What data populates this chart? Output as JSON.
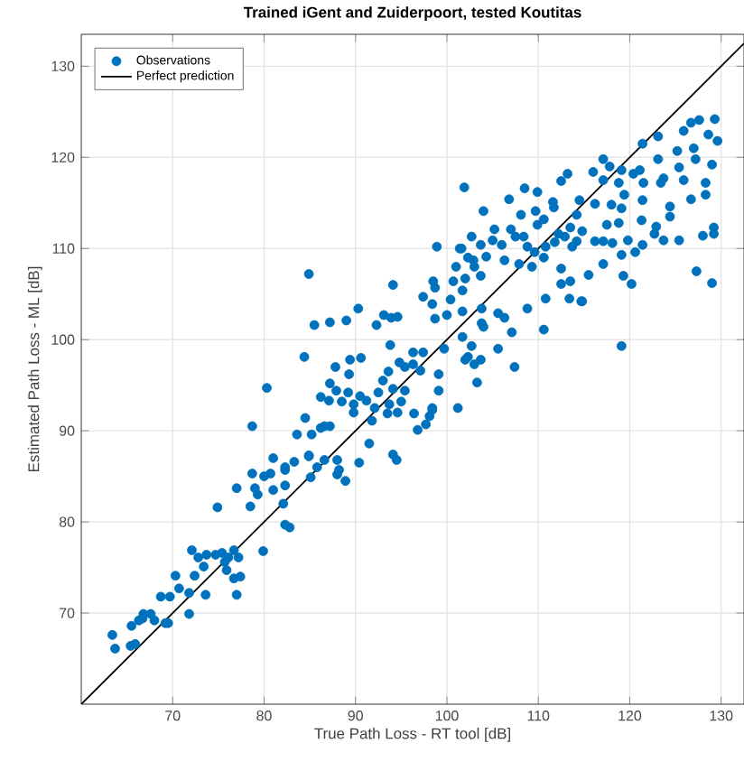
{
  "chart_data": {
    "type": "scatter",
    "title": "Trained iGent and Zuiderpoort, tested Koutitas",
    "xlabel": "True Path Loss - RT tool [dB]",
    "ylabel": "Estimated Path Loss - ML [dB]",
    "xlim": [
      60,
      132.5
    ],
    "ylim": [
      60,
      133.5
    ],
    "xticks": [
      70,
      80,
      90,
      100,
      110,
      120,
      130
    ],
    "yticks": [
      70,
      80,
      90,
      100,
      110,
      120,
      130
    ],
    "grid": true,
    "legend": "top left",
    "series": [
      {
        "name": "Observations",
        "marker": "circle",
        "color": "#0072bd",
        "x": [
          78.7,
          84.5,
          83.6,
          85.2,
          86.2,
          81.0,
          82.3,
          83.3,
          84.9,
          78.7,
          80.0,
          80.7,
          82.3,
          77.0,
          79.0,
          79.3,
          81.0,
          82.3,
          85.1,
          74.9,
          78.5,
          82.3,
          82.8,
          79.9,
          72.1,
          72.8,
          73.7,
          74.7,
          75.4,
          76.1,
          76.7,
          77.2,
          75.9,
          76.7,
          77.4,
          75.7,
          73.4,
          72.4,
          70.3,
          70.7,
          71.8,
          73.6,
          68.7,
          69.7,
          71.8,
          66.8,
          67.6,
          68.0,
          66.3,
          65.5,
          69.2,
          69.5,
          63.4,
          63.7,
          65.4,
          65.9,
          66.7,
          77.0,
          82.1,
          98.9,
          101.6,
          102.3,
          103.0,
          103.7,
          102.0,
          100.7,
          98.5,
          98.7,
          94.1,
          84.9,
          101.7,
          97.4,
          100.4,
          98.4,
          100.0,
          98.7,
          101.7,
          103.8,
          90.3,
          93.1,
          93.9,
          94.6,
          92.3,
          89.0,
          87.2,
          85.5,
          93.8,
          96.3,
          97.4,
          99.7,
          101.7,
          102.3,
          103.7,
          103.8,
          84.4,
          89.4,
          90.6,
          87.8,
          94.8,
          95.4,
          96.3,
          97.1,
          99.1,
          89.3,
          93.6,
          93.0,
          103.3,
          87.2,
          80.3,
          87.9,
          89.2,
          90.5,
          92.5,
          94.1,
          95.4,
          99.1,
          86.2,
          87.1,
          88.5,
          89.8,
          91.2,
          92.1,
          93.7,
          95.0,
          94.6,
          93.5,
          96.4,
          98.4,
          98.1,
          97.7,
          101.2,
          89.8,
          87.2,
          86.6,
          91.8,
          96.8,
          91.5,
          84.9,
          86.6,
          88.0,
          90.4,
          94.1,
          94.5,
          85.8,
          88.2,
          88.9,
          88.0,
          129.3,
          127.6,
          126.7,
          125.9,
          128.6,
          129.6,
          127.0,
          125.2,
          123.1,
          121.4,
          127.2,
          129.0,
          123.1,
          121.1,
          120.4,
          119.1,
          117.1,
          117.8,
          116.0,
          113.2,
          125.4,
          123.7,
          123.4,
          128.3,
          125.9,
          121.5,
          118.8,
          117.1,
          112.5,
          101.9,
          108.5,
          109.9,
          106.8,
          111.6,
          114.5,
          116.2,
          118.0,
          119.4,
          121.4,
          124.4,
          126.7,
          128.3,
          104.0,
          108.1,
          109.7,
          111.7,
          114.2,
          119.1,
          121.3,
          122.9,
          124.4,
          105.2,
          107.0,
          108.4,
          109.9,
          110.6,
          112.2,
          113.5,
          114.8,
          117.5,
          118.8,
          102.7,
          103.7,
          105.0,
          106.0,
          107.5,
          108.8,
          110.8,
          111.8,
          112.9,
          114.2,
          116.2,
          117.1,
          118.1,
          119.8,
          121.4,
          122.7,
          123.7,
          125.4,
          128.0,
          129.2,
          129.2,
          101.4,
          109.6,
          110.6,
          113.7,
          117.1,
          119.1,
          120.6,
          112.5,
          109.3,
          107.9,
          106.3,
          104.3,
          102.9,
          101.0,
          127.3,
          129.0,
          113.5,
          115.5,
          119.3,
          120.2,
          112.5,
          110.8,
          113.4,
          114.8,
          108.8,
          105.6,
          106.3,
          114.7,
          110.6,
          119.1,
          107.1,
          105.6,
          107.4,
          104.0,
          98.4,
          102.7,
          102.0,
          103.0
        ],
        "values": [
          90.5,
          91.4,
          89.6,
          89.6,
          90.3,
          87.0,
          86.0,
          86.6,
          87.3,
          85.3,
          85.0,
          85.3,
          85.7,
          83.7,
          83.7,
          83.0,
          83.5,
          84.0,
          84.9,
          81.6,
          81.7,
          79.7,
          79.4,
          76.8,
          76.9,
          76.1,
          76.4,
          76.4,
          76.6,
          76.1,
          76.9,
          76.1,
          74.7,
          73.8,
          74.0,
          75.6,
          75.1,
          74.1,
          74.1,
          72.7,
          72.2,
          72.0,
          71.8,
          71.8,
          69.9,
          69.9,
          69.9,
          69.2,
          69.2,
          68.6,
          68.9,
          68.9,
          67.6,
          66.1,
          66.4,
          66.6,
          69.4,
          72.0,
          82.0,
          110.2,
          110.0,
          109.0,
          108.0,
          107.0,
          106.7,
          106.4,
          106.4,
          105.7,
          106.0,
          107.2,
          105.4,
          104.7,
          104.4,
          103.9,
          102.7,
          102.3,
          103.1,
          103.4,
          103.4,
          102.7,
          102.4,
          102.5,
          101.6,
          102.1,
          101.9,
          101.6,
          99.4,
          98.6,
          98.6,
          99.0,
          100.3,
          98.1,
          97.8,
          101.8,
          98.1,
          97.8,
          98.0,
          97.0,
          97.5,
          97.0,
          97.3,
          96.6,
          96.2,
          96.2,
          96.5,
          95.5,
          95.3,
          95.2,
          94.7,
          94.4,
          94.2,
          93.8,
          94.2,
          94.6,
          94.4,
          94.4,
          93.7,
          93.3,
          93.2,
          92.9,
          93.3,
          92.5,
          92.9,
          93.2,
          92.0,
          91.9,
          91.9,
          92.5,
          91.6,
          90.7,
          92.5,
          92.0,
          90.5,
          90.5,
          91.1,
          90.1,
          88.6,
          87.2,
          86.8,
          86.8,
          86.5,
          87.4,
          86.8,
          86.0,
          85.7,
          84.5,
          85.2,
          124.2,
          124.1,
          123.8,
          122.9,
          122.5,
          121.8,
          121.0,
          120.7,
          122.3,
          121.5,
          119.8,
          119.2,
          119.8,
          118.6,
          118.2,
          118.6,
          119.8,
          119.0,
          118.4,
          118.2,
          118.9,
          117.7,
          117.2,
          117.2,
          117.5,
          117.2,
          117.2,
          117.5,
          117.4,
          116.7,
          116.6,
          116.2,
          115.4,
          115.1,
          115.3,
          114.9,
          114.8,
          115.9,
          115.3,
          114.6,
          115.4,
          115.9,
          114.1,
          113.7,
          114.1,
          114.5,
          113.7,
          114.4,
          113.1,
          112.4,
          113.5,
          112.1,
          112.1,
          111.3,
          112.6,
          113.2,
          111.6,
          112.3,
          111.9,
          112.6,
          112.8,
          111.3,
          110.4,
          110.9,
          110.4,
          111.3,
          110.2,
          110.2,
          110.7,
          111.3,
          110.8,
          110.8,
          110.8,
          110.6,
          110.9,
          110.4,
          111.6,
          110.9,
          110.9,
          111.4,
          111.6,
          112.3,
          110.0,
          109.6,
          109.0,
          110.2,
          108.3,
          109.3,
          109.6,
          107.8,
          108.0,
          108.3,
          108.7,
          109.1,
          108.7,
          108.0,
          107.5,
          106.2,
          106.4,
          107.1,
          107.0,
          106.1,
          106.1,
          104.5,
          104.5,
          104.2,
          103.4,
          102.9,
          102.4,
          104.2,
          101.1,
          99.3,
          100.8,
          99.0,
          97.0,
          101.4,
          92.3,
          99.3,
          97.8,
          97.3
        ]
      },
      {
        "name": "Perfect prediction",
        "type": "line",
        "color": "#000000",
        "line_style": "solid",
        "marker": "none",
        "x": [
          60,
          132.5
        ],
        "values": [
          60,
          132.5
        ]
      }
    ]
  }
}
